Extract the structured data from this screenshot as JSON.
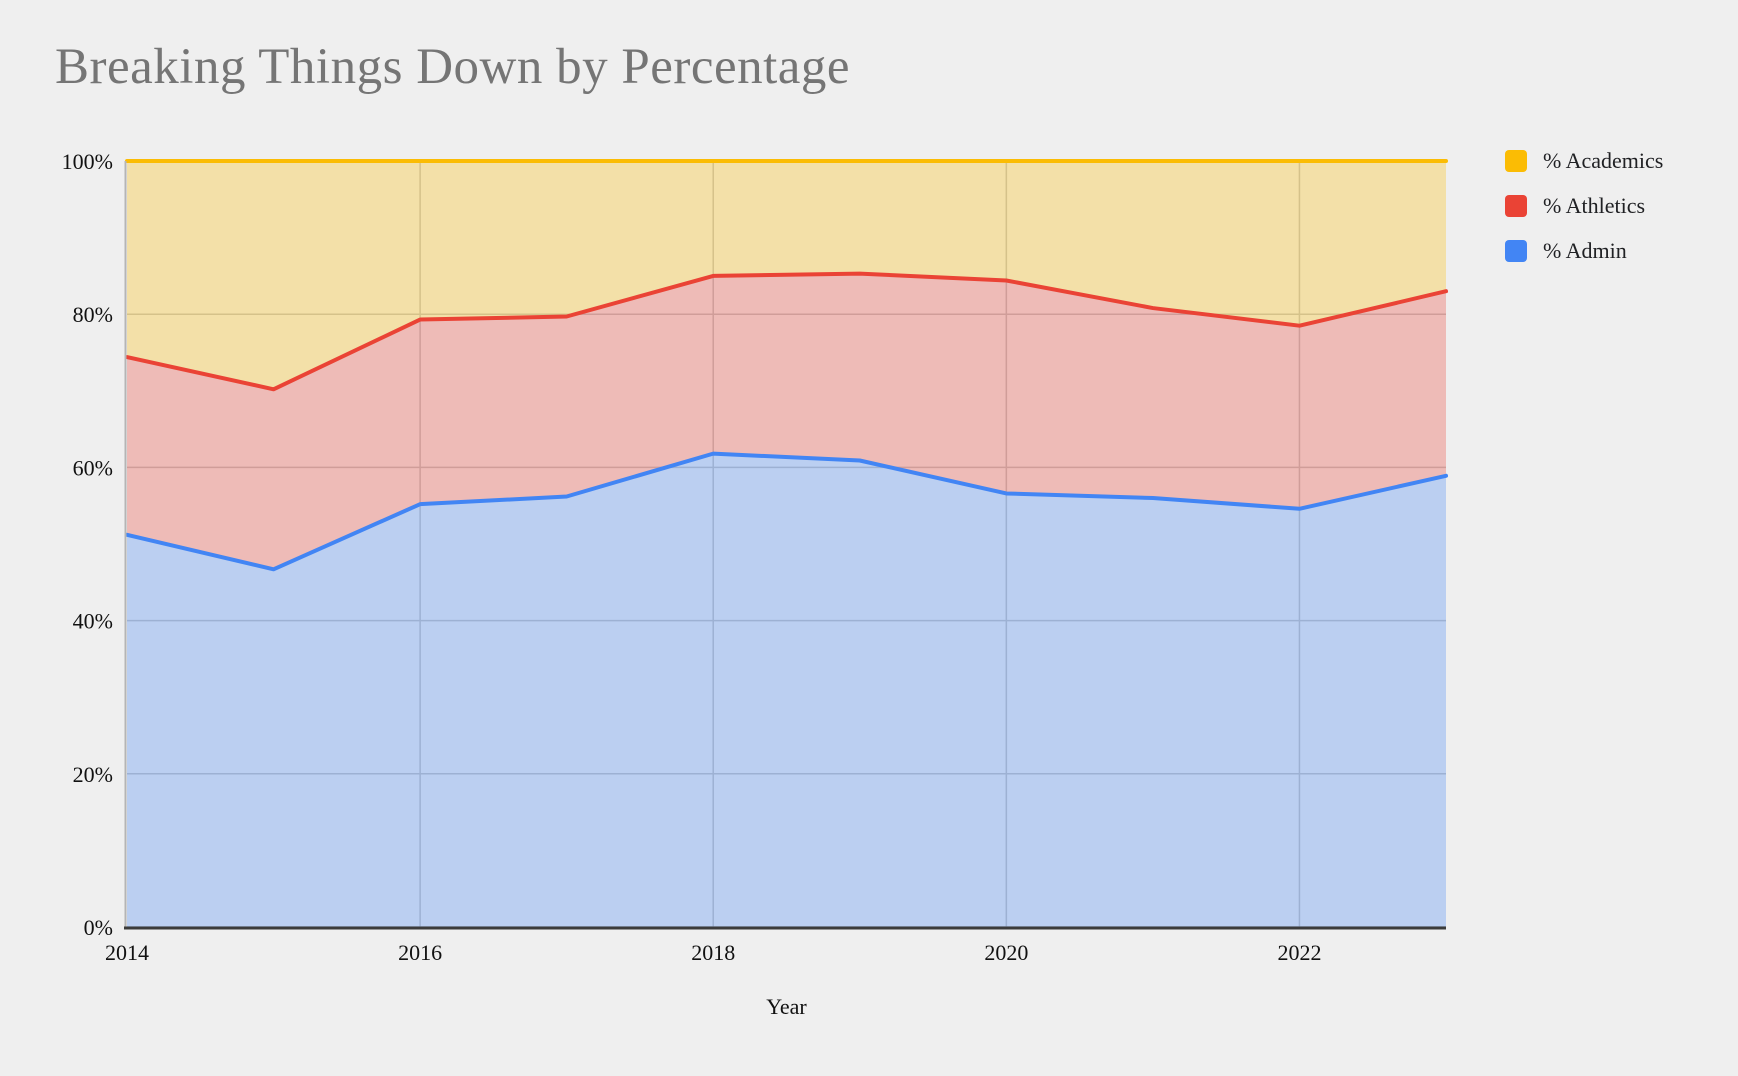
{
  "title": "Breaking Things Down by Percentage",
  "page": {
    "background_color": "#efefef"
  },
  "chart_data": {
    "type": "area",
    "stacked": true,
    "title": "Breaking Things Down by Percentage",
    "xlabel": "Year",
    "ylabel": "",
    "x": [
      2014,
      2015,
      2016,
      2017,
      2018,
      2019,
      2020,
      2021,
      2022,
      2023
    ],
    "series": [
      {
        "name": "% Admin",
        "color": "#4285F4",
        "values": [
          51.2,
          46.7,
          55.2,
          56.2,
          61.8,
          60.9,
          56.6,
          56.0,
          54.6,
          58.9
        ]
      },
      {
        "name": "% Athletics",
        "color": "#EA4335",
        "values": [
          23.2,
          23.5,
          24.1,
          23.5,
          23.2,
          24.4,
          27.8,
          24.8,
          23.9,
          24.1
        ]
      },
      {
        "name": "% Academics",
        "color": "#FBBC04",
        "values": [
          25.6,
          29.8,
          20.7,
          20.3,
          15.0,
          14.7,
          15.6,
          19.2,
          21.5,
          17.0
        ]
      }
    ],
    "xlim": [
      2014,
      2023
    ],
    "ylim": [
      0,
      100
    ],
    "y_ticks": [
      {
        "value": 0,
        "label": "0%"
      },
      {
        "value": 20,
        "label": "20%"
      },
      {
        "value": 40,
        "label": "40%"
      },
      {
        "value": 60,
        "label": "60%"
      },
      {
        "value": 80,
        "label": "80%"
      },
      {
        "value": 100,
        "label": "100%"
      }
    ],
    "x_ticks": [
      {
        "value": 2014,
        "label": "2014"
      },
      {
        "value": 2016,
        "label": "2016"
      },
      {
        "value": 2018,
        "label": "2018"
      },
      {
        "value": 2020,
        "label": "2020"
      },
      {
        "value": 2022,
        "label": "2022"
      }
    ],
    "x_gridlines": [
      2016,
      2018,
      2020,
      2022
    ],
    "grid": true,
    "fill_opacity": 0.3,
    "legend_position": "right",
    "colors": {
      "gridline": "#c4c4c4",
      "baseline": "#3b3b3b",
      "axis_line": "#b5b5b5",
      "tick_text": "#111111"
    }
  },
  "legend": {
    "items": [
      {
        "label": "% Academics",
        "color": "#FBBC04"
      },
      {
        "label": "% Athletics",
        "color": "#EA4335"
      },
      {
        "label": "% Admin",
        "color": "#4285F4"
      }
    ]
  }
}
